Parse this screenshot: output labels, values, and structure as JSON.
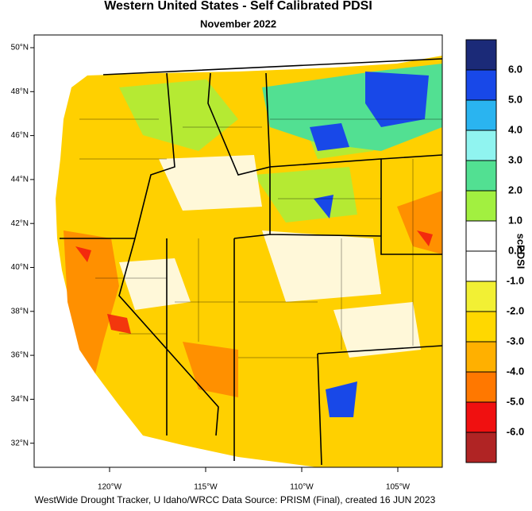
{
  "title": "Western United States - Self Calibrated PDSI",
  "subtitle": "November 2022",
  "latitude_labels": [
    "50°N",
    "48°N",
    "46°N",
    "44°N",
    "42°N",
    "40°N",
    "38°N",
    "36°N",
    "34°N",
    "32°N"
  ],
  "longitude_labels": [
    "120°W",
    "115°W",
    "110°W",
    "105°W"
  ],
  "colorbar": {
    "title": "scPDSI",
    "ticks": [
      {
        "value": 6,
        "label": "6.0"
      },
      {
        "value": 5,
        "label": "5.0"
      },
      {
        "value": 4,
        "label": "4.0"
      },
      {
        "value": 3,
        "label": "3.0"
      },
      {
        "value": 2,
        "label": "2.0"
      },
      {
        "value": 1,
        "label": "1.0"
      },
      {
        "value": 0,
        "label": "0.0"
      },
      {
        "value": -1,
        "label": "-1.0"
      },
      {
        "value": -2,
        "label": "-2.0"
      },
      {
        "value": -3,
        "label": "-3.0"
      },
      {
        "value": -4,
        "label": "-4.0"
      },
      {
        "value": -5,
        "label": "-5.0"
      },
      {
        "value": -6,
        "label": "-6.0"
      }
    ],
    "colors": [
      "#1b2a78",
      "#1848e8",
      "#2ab4f0",
      "#90f4f0",
      "#52e092",
      "#a2f040",
      "#ffffff",
      "#ffffff",
      "#f2f034",
      "#ffd800",
      "#ffb000",
      "#ff7800",
      "#f01010",
      "#b02424"
    ]
  },
  "footer": "WestWide Drought Tracker, U Idaho/WRCC Data Source: PRISM (Final), created 16 JUN 2023"
}
